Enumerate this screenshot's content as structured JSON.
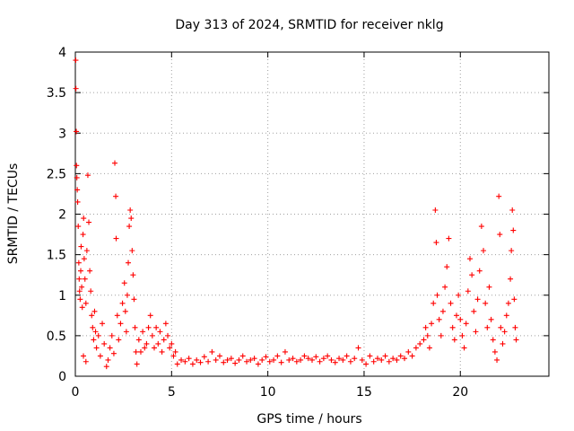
{
  "chart_data": {
    "type": "scatter",
    "title": "Day 313 of 2024, SRMTID for receiver nklg",
    "xlabel": "GPS time / hours",
    "ylabel": "SRMTID / TECUs",
    "xlim": [
      0,
      24.6
    ],
    "ylim": [
      0,
      4
    ],
    "x_ticks": [
      0,
      5,
      10,
      15,
      20
    ],
    "x_tick_labels": [
      "0",
      "5",
      "10",
      "15",
      "20"
    ],
    "y_ticks": [
      0,
      0.5,
      1,
      1.5,
      2,
      2.5,
      3,
      3.5,
      4
    ],
    "y_tick_labels": [
      "0",
      "0.5",
      "1",
      "1.5",
      "2",
      "2.5",
      "3",
      "3.5",
      "4"
    ],
    "grid": true,
    "marker": "+",
    "color": "#ff0000",
    "series": [
      {
        "name": "SRMTID",
        "points": [
          [
            0.02,
            3.9
          ],
          [
            0.03,
            3.55
          ],
          [
            0.05,
            3.02
          ],
          [
            0.06,
            2.6
          ],
          [
            0.08,
            2.45
          ],
          [
            0.1,
            2.3
          ],
          [
            0.12,
            2.15
          ],
          [
            0.15,
            1.85
          ],
          [
            0.18,
            1.4
          ],
          [
            0.2,
            1.2
          ],
          [
            0.22,
            1.05
          ],
          [
            0.25,
            0.95
          ],
          [
            0.28,
            1.3
          ],
          [
            0.3,
            1.6
          ],
          [
            0.33,
            1.1
          ],
          [
            0.36,
            0.85
          ],
          [
            0.4,
            1.75
          ],
          [
            0.43,
            1.95
          ],
          [
            0.46,
            1.45
          ],
          [
            0.5,
            1.2
          ],
          [
            0.55,
            0.9
          ],
          [
            0.6,
            1.55
          ],
          [
            0.65,
            2.48
          ],
          [
            0.7,
            1.9
          ],
          [
            0.75,
            1.3
          ],
          [
            0.8,
            1.05
          ],
          [
            0.85,
            0.75
          ],
          [
            0.9,
            0.6
          ],
          [
            0.95,
            0.45
          ],
          [
            1.0,
            0.8
          ],
          [
            1.05,
            0.55
          ],
          [
            1.1,
            0.35
          ],
          [
            1.2,
            0.5
          ],
          [
            1.3,
            0.25
          ],
          [
            1.4,
            0.65
          ],
          [
            1.5,
            0.4
          ],
          [
            0.42,
            0.25
          ],
          [
            0.55,
            0.18
          ],
          [
            1.62,
            0.12
          ],
          [
            1.7,
            0.2
          ],
          [
            1.8,
            0.35
          ],
          [
            1.9,
            0.5
          ],
          [
            2.0,
            0.28
          ],
          [
            2.05,
            2.63
          ],
          [
            2.1,
            2.22
          ],
          [
            2.12,
            1.7
          ],
          [
            2.18,
            0.75
          ],
          [
            2.25,
            0.45
          ],
          [
            2.35,
            0.65
          ],
          [
            2.45,
            0.9
          ],
          [
            2.55,
            1.15
          ],
          [
            2.6,
            0.8
          ],
          [
            2.65,
            0.55
          ],
          [
            2.7,
            1.0
          ],
          [
            2.75,
            1.4
          ],
          [
            2.8,
            1.85
          ],
          [
            2.85,
            2.05
          ],
          [
            2.9,
            1.95
          ],
          [
            2.95,
            1.55
          ],
          [
            3.0,
            1.25
          ],
          [
            3.05,
            0.95
          ],
          [
            3.1,
            0.6
          ],
          [
            3.15,
            0.3
          ],
          [
            3.2,
            0.15
          ],
          [
            3.3,
            0.45
          ],
          [
            3.4,
            0.3
          ],
          [
            3.5,
            0.55
          ],
          [
            3.6,
            0.35
          ],
          [
            3.7,
            0.4
          ],
          [
            3.8,
            0.6
          ],
          [
            3.9,
            0.75
          ],
          [
            4.0,
            0.5
          ],
          [
            4.1,
            0.35
          ],
          [
            4.2,
            0.6
          ],
          [
            4.3,
            0.4
          ],
          [
            4.4,
            0.55
          ],
          [
            4.5,
            0.3
          ],
          [
            4.6,
            0.45
          ],
          [
            4.7,
            0.65
          ],
          [
            4.8,
            0.5
          ],
          [
            4.9,
            0.35
          ],
          [
            5.0,
            0.4
          ],
          [
            5.1,
            0.25
          ],
          [
            5.2,
            0.3
          ],
          [
            5.3,
            0.15
          ],
          [
            5.5,
            0.2
          ],
          [
            5.7,
            0.18
          ],
          [
            5.9,
            0.22
          ],
          [
            6.1,
            0.15
          ],
          [
            6.3,
            0.2
          ],
          [
            6.5,
            0.17
          ],
          [
            6.7,
            0.24
          ],
          [
            6.9,
            0.18
          ],
          [
            7.1,
            0.3
          ],
          [
            7.3,
            0.2
          ],
          [
            7.5,
            0.25
          ],
          [
            7.7,
            0.17
          ],
          [
            7.9,
            0.2
          ],
          [
            8.1,
            0.22
          ],
          [
            8.3,
            0.16
          ],
          [
            8.5,
            0.2
          ],
          [
            8.7,
            0.25
          ],
          [
            8.9,
            0.18
          ],
          [
            9.1,
            0.2
          ],
          [
            9.3,
            0.22
          ],
          [
            9.5,
            0.15
          ],
          [
            9.7,
            0.2
          ],
          [
            9.9,
            0.24
          ],
          [
            10.1,
            0.18
          ],
          [
            10.3,
            0.2
          ],
          [
            10.5,
            0.25
          ],
          [
            10.7,
            0.17
          ],
          [
            10.9,
            0.3
          ],
          [
            11.1,
            0.2
          ],
          [
            11.3,
            0.22
          ],
          [
            11.5,
            0.18
          ],
          [
            11.7,
            0.2
          ],
          [
            11.9,
            0.25
          ],
          [
            12.1,
            0.22
          ],
          [
            12.3,
            0.2
          ],
          [
            12.5,
            0.24
          ],
          [
            12.7,
            0.18
          ],
          [
            12.9,
            0.22
          ],
          [
            13.1,
            0.25
          ],
          [
            13.3,
            0.2
          ],
          [
            13.5,
            0.17
          ],
          [
            13.7,
            0.22
          ],
          [
            13.9,
            0.2
          ],
          [
            14.1,
            0.25
          ],
          [
            14.3,
            0.18
          ],
          [
            14.5,
            0.22
          ],
          [
            14.7,
            0.35
          ],
          [
            14.9,
            0.2
          ],
          [
            15.1,
            0.15
          ],
          [
            15.3,
            0.25
          ],
          [
            15.5,
            0.18
          ],
          [
            15.7,
            0.22
          ],
          [
            15.9,
            0.2
          ],
          [
            16.1,
            0.25
          ],
          [
            16.3,
            0.18
          ],
          [
            16.5,
            0.22
          ],
          [
            16.7,
            0.2
          ],
          [
            16.9,
            0.25
          ],
          [
            17.1,
            0.22
          ],
          [
            17.3,
            0.3
          ],
          [
            17.5,
            0.25
          ],
          [
            17.7,
            0.35
          ],
          [
            17.9,
            0.4
          ],
          [
            18.1,
            0.45
          ],
          [
            18.2,
            0.6
          ],
          [
            18.3,
            0.5
          ],
          [
            18.4,
            0.35
          ],
          [
            18.5,
            0.65
          ],
          [
            18.6,
            0.9
          ],
          [
            18.7,
            2.05
          ],
          [
            18.75,
            1.65
          ],
          [
            18.8,
            1.0
          ],
          [
            18.9,
            0.7
          ],
          [
            19.0,
            0.5
          ],
          [
            19.1,
            0.8
          ],
          [
            19.2,
            1.1
          ],
          [
            19.3,
            1.35
          ],
          [
            19.4,
            1.7
          ],
          [
            19.5,
            0.9
          ],
          [
            19.6,
            0.6
          ],
          [
            19.7,
            0.45
          ],
          [
            19.8,
            0.75
          ],
          [
            19.9,
            1.0
          ],
          [
            20.0,
            0.7
          ],
          [
            20.1,
            0.5
          ],
          [
            20.2,
            0.35
          ],
          [
            20.3,
            0.65
          ],
          [
            20.4,
            1.05
          ],
          [
            20.5,
            1.45
          ],
          [
            20.6,
            1.25
          ],
          [
            20.7,
            0.8
          ],
          [
            20.8,
            0.55
          ],
          [
            20.9,
            0.95
          ],
          [
            21.0,
            1.3
          ],
          [
            21.1,
            1.85
          ],
          [
            21.2,
            1.55
          ],
          [
            21.3,
            0.9
          ],
          [
            21.4,
            0.6
          ],
          [
            21.5,
            1.1
          ],
          [
            21.6,
            0.7
          ],
          [
            21.7,
            0.45
          ],
          [
            21.8,
            0.3
          ],
          [
            21.9,
            0.2
          ],
          [
            22.0,
            2.22
          ],
          [
            22.05,
            1.75
          ],
          [
            22.1,
            0.6
          ],
          [
            22.2,
            0.4
          ],
          [
            22.3,
            0.55
          ],
          [
            22.4,
            0.75
          ],
          [
            22.5,
            0.9
          ],
          [
            22.6,
            1.2
          ],
          [
            22.65,
            1.55
          ],
          [
            22.7,
            2.05
          ],
          [
            22.75,
            1.8
          ],
          [
            22.8,
            0.95
          ],
          [
            22.85,
            0.6
          ],
          [
            22.9,
            0.45
          ]
        ]
      }
    ]
  }
}
